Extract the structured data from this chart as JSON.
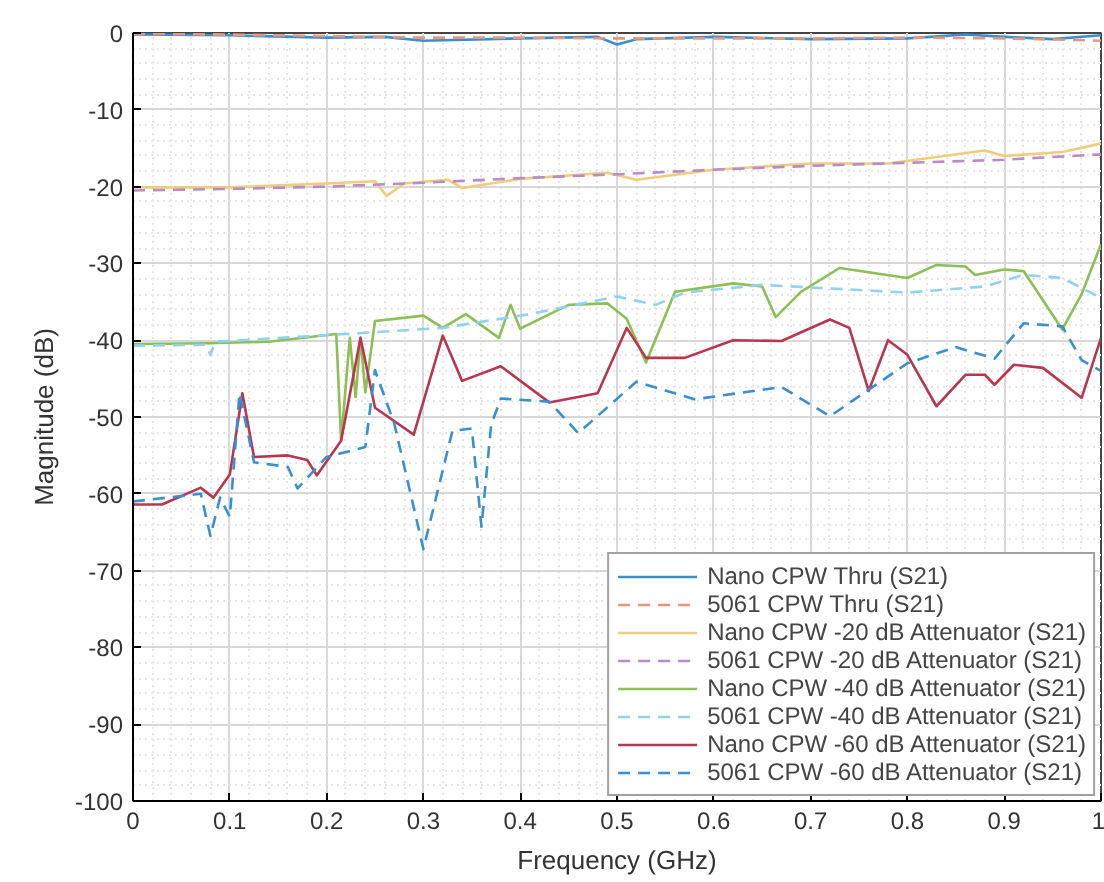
{
  "chart_data": {
    "type": "line",
    "xlabel": "Frequency (GHz)",
    "ylabel": "Magnitude (dB)",
    "xlim": [
      0,
      1
    ],
    "ylim": [
      -100,
      0
    ],
    "xticks": [
      0,
      0.1,
      0.2,
      0.3,
      0.4,
      0.5,
      0.6,
      0.7,
      0.8,
      0.9,
      1
    ],
    "yticks": [
      -100,
      -90,
      -80,
      -70,
      -60,
      -50,
      -40,
      -30,
      -20,
      -10,
      0
    ],
    "grid": true,
    "legend": "bottom right",
    "series": [
      {
        "name": "Nano CPW Thru (S21)",
        "color": "#3a8fd0",
        "line_style": "solid",
        "x": [
          0,
          0.1,
          0.2,
          0.26,
          0.3,
          0.4,
          0.48,
          0.5,
          0.52,
          0.6,
          0.7,
          0.8,
          0.86,
          0.9,
          0.95,
          1
        ],
        "values": [
          -0.2,
          -0.3,
          -0.6,
          -0.5,
          -1.0,
          -0.7,
          -0.5,
          -1.5,
          -0.8,
          -0.5,
          -0.8,
          -0.7,
          -0.2,
          -0.5,
          -0.8,
          -0.3
        ]
      },
      {
        "name": "5061 CPW Thru (S21)",
        "color": "#e8987a",
        "line_style": "dashed",
        "x": [
          0,
          0.1,
          0.2,
          0.3,
          0.4,
          0.5,
          0.6,
          0.7,
          0.8,
          0.9,
          1
        ],
        "values": [
          -0.1,
          -0.2,
          -0.4,
          -0.6,
          -0.6,
          -0.7,
          -0.7,
          -0.7,
          -0.6,
          -0.7,
          -1.0
        ]
      },
      {
        "name": "Nano CPW -20 dB Attenuator (S21)",
        "color": "#f0cd7a",
        "line_style": "solid",
        "x": [
          0,
          0.1,
          0.2,
          0.25,
          0.262,
          0.28,
          0.325,
          0.34,
          0.4,
          0.49,
          0.52,
          0.6,
          0.7,
          0.78,
          0.88,
          0.9,
          0.96,
          1
        ],
        "values": [
          -20.1,
          -20.1,
          -19.6,
          -19.3,
          -21.2,
          -19.6,
          -19.1,
          -20.2,
          -19.0,
          -18.2,
          -19.1,
          -17.8,
          -17.0,
          -17.0,
          -15.3,
          -16.0,
          -15.5,
          -14.4
        ]
      },
      {
        "name": "5061 CPW -20 dB Attenuator (S21)",
        "color": "#b98bc9",
        "line_style": "dashed",
        "x": [
          0,
          0.1,
          0.2,
          0.3,
          0.4,
          0.5,
          0.6,
          0.7,
          0.8,
          0.9,
          1
        ],
        "values": [
          -20.5,
          -20.3,
          -20.0,
          -19.5,
          -18.9,
          -18.4,
          -17.8,
          -17.3,
          -16.9,
          -16.5,
          -15.8
        ]
      },
      {
        "name": "Nano CPW -40 dB Attenuator (S21)",
        "color": "#8cbf55",
        "line_style": "solid",
        "x": [
          0,
          0.077,
          0.14,
          0.21,
          0.215,
          0.224,
          0.23,
          0.235,
          0.24,
          0.25,
          0.3,
          0.32,
          0.344,
          0.378,
          0.39,
          0.4,
          0.45,
          0.49,
          0.51,
          0.53,
          0.56,
          0.62,
          0.65,
          0.664,
          0.69,
          0.73,
          0.8,
          0.83,
          0.86,
          0.87,
          0.9,
          0.92,
          0.96,
          0.98,
          1
        ],
        "values": [
          -40.5,
          -40.4,
          -40.2,
          -39.2,
          -53.1,
          -39.7,
          -47.4,
          -39.7,
          -46.8,
          -37.5,
          -36.8,
          -38.4,
          -36.6,
          -39.7,
          -35.4,
          -38.5,
          -35.4,
          -35.2,
          -37.2,
          -42.9,
          -33.7,
          -32.6,
          -33.0,
          -37.0,
          -33.7,
          -30.6,
          -31.9,
          -30.2,
          -30.4,
          -31.5,
          -30.8,
          -31.0,
          -38.6,
          -34.0,
          -27.5
        ]
      },
      {
        "name": "5061 CPW -40 dB Attenuator (S21)",
        "color": "#8fd3f2",
        "line_style": "dashed",
        "x": [
          0,
          0.075,
          0.08,
          0.085,
          0.22,
          0.32,
          0.41,
          0.5,
          0.54,
          0.57,
          0.65,
          0.8,
          0.88,
          0.92,
          0.96,
          1
        ],
        "values": [
          -40.7,
          -40.6,
          -41.9,
          -40.2,
          -39.2,
          -38.4,
          -36.6,
          -34.3,
          -35.4,
          -33.8,
          -32.8,
          -33.8,
          -33.0,
          -31.5,
          -31.9,
          -34.5
        ]
      },
      {
        "name": "Nano CPW -60 dB Attenuator (S21)",
        "color": "#b8374f",
        "line_style": "solid",
        "x": [
          0,
          0.03,
          0.07,
          0.083,
          0.1,
          0.113,
          0.125,
          0.16,
          0.18,
          0.19,
          0.215,
          0.235,
          0.25,
          0.29,
          0.32,
          0.34,
          0.38,
          0.43,
          0.48,
          0.51,
          0.53,
          0.57,
          0.62,
          0.67,
          0.72,
          0.74,
          0.76,
          0.78,
          0.8,
          0.83,
          0.86,
          0.88,
          0.89,
          0.91,
          0.94,
          0.98,
          1
        ],
        "values": [
          -61.4,
          -61.4,
          -59.2,
          -60.5,
          -57.5,
          -46.9,
          -55.2,
          -55.0,
          -55.6,
          -57.6,
          -53.1,
          -39.7,
          -48.8,
          -52.3,
          -39.4,
          -45.3,
          -43.4,
          -48.1,
          -46.9,
          -38.4,
          -42.3,
          -42.3,
          -40.0,
          -40.1,
          -37.3,
          -38.4,
          -46.6,
          -40.0,
          -41.9,
          -48.6,
          -44.5,
          -44.5,
          -45.8,
          -43.2,
          -43.6,
          -47.5,
          -39.7
        ]
      },
      {
        "name": "5061 CPW -60 dB Attenuator (S21)",
        "color": "#3a8fd0",
        "line_style": "dashed",
        "x": [
          0,
          0.07,
          0.08,
          0.09,
          0.1,
          0.11,
          0.125,
          0.16,
          0.17,
          0.2,
          0.24,
          0.25,
          0.27,
          0.3,
          0.33,
          0.35,
          0.36,
          0.37,
          0.38,
          0.43,
          0.46,
          0.52,
          0.58,
          0.67,
          0.72,
          0.8,
          0.85,
          0.89,
          0.92,
          0.96,
          0.98,
          1
        ],
        "values": [
          -61.0,
          -60.0,
          -65.5,
          -60.5,
          -63.0,
          -46.9,
          -55.9,
          -56.5,
          -59.3,
          -55.2,
          -53.9,
          -43.9,
          -50.9,
          -67.2,
          -51.8,
          -51.5,
          -64.3,
          -51.0,
          -47.6,
          -48.0,
          -52.1,
          -45.4,
          -47.7,
          -46.1,
          -49.9,
          -43.0,
          -40.9,
          -42.4,
          -37.8,
          -38.2,
          -42.6,
          -44.0
        ]
      }
    ]
  }
}
